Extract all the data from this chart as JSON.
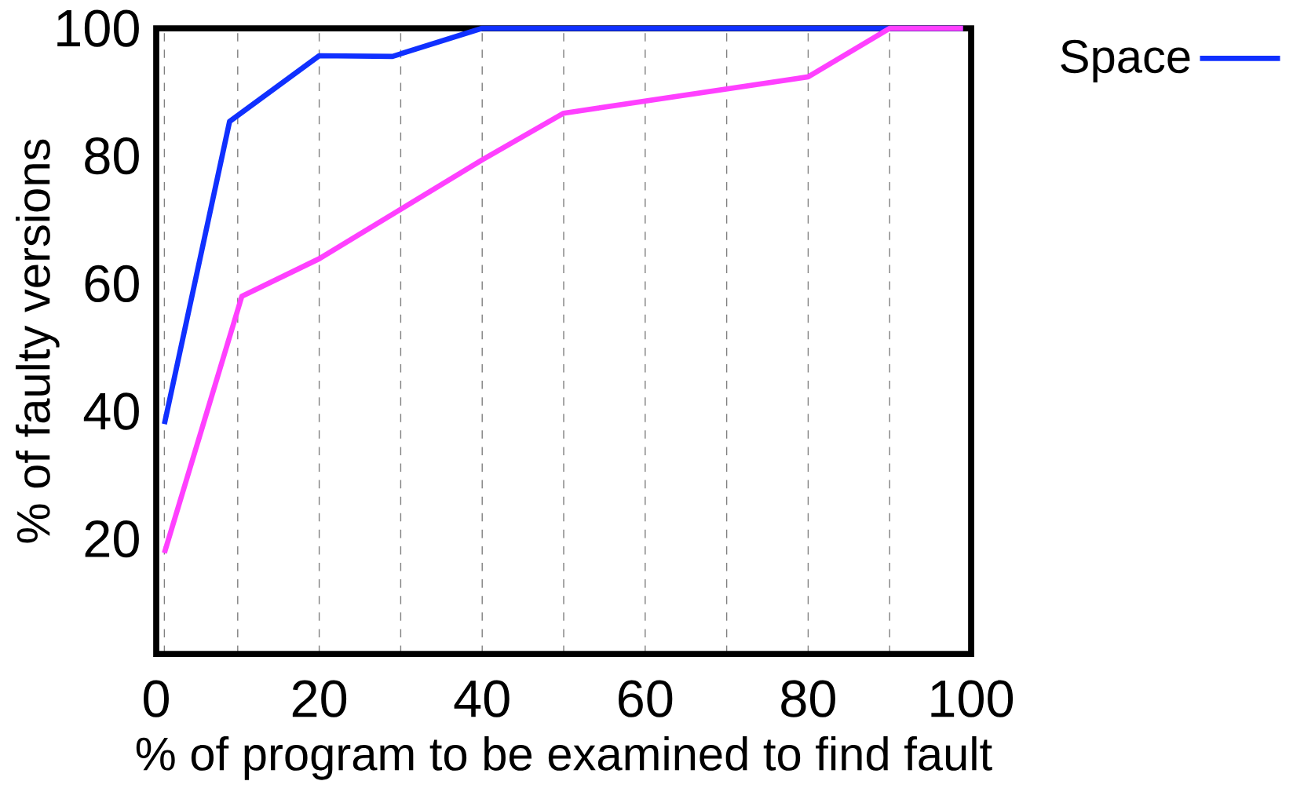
{
  "chart_data": {
    "type": "line",
    "xlabel": "% of program to be examined to find fault",
    "ylabel": "% of faulty versions",
    "xlim": [
      0,
      100
    ],
    "ylim": [
      2,
      100
    ],
    "xticks": [
      0,
      {
        "value": 1,
        "label": null
      },
      {
        "value": 10,
        "label": null
      },
      20,
      {
        "value": 30,
        "label": null
      },
      40,
      {
        "value": 50,
        "label": null
      },
      60,
      {
        "value": 70,
        "label": null
      },
      80,
      {
        "value": 90,
        "label": null
      },
      100
    ],
    "yticks": [
      20,
      40,
      60,
      80,
      100
    ],
    "grid": "x",
    "legend": "top right",
    "marker": "none",
    "line_style": "solid",
    "series": [
      {
        "name": "Space",
        "color": "#1030ff",
        "x": [
          1,
          9,
          20,
          29,
          40,
          90,
          99
        ],
        "values": [
          38,
          85.4,
          95.7,
          95.6,
          100,
          100,
          100
        ]
      },
      {
        "color": "#ff40ff",
        "x": [
          1,
          10.5,
          20,
          40,
          50,
          80,
          90,
          99
        ],
        "values": [
          17.8,
          58,
          63.9,
          79.4,
          86.7,
          92.4,
          100,
          100
        ]
      }
    ]
  }
}
